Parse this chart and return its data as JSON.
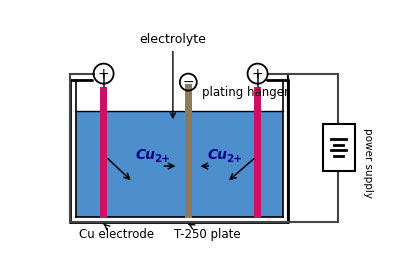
{
  "bg_color": "#ffffff",
  "wire_color": "#444444",
  "tank_lw": 2.0,
  "liquid_color": "#4d8fcc",
  "electrode_color": "#cc1166",
  "hanger_color": "#8B7B5A",
  "text_main": "#000000",
  "text_cu": "#00008B",
  "electrolyte_label": "electrolyte",
  "plating_hanger_label": "plating hanger",
  "cu_electrode_label": "Cu electrode",
  "t250_label": "T-250 plate",
  "power_supply_label": "power supply"
}
